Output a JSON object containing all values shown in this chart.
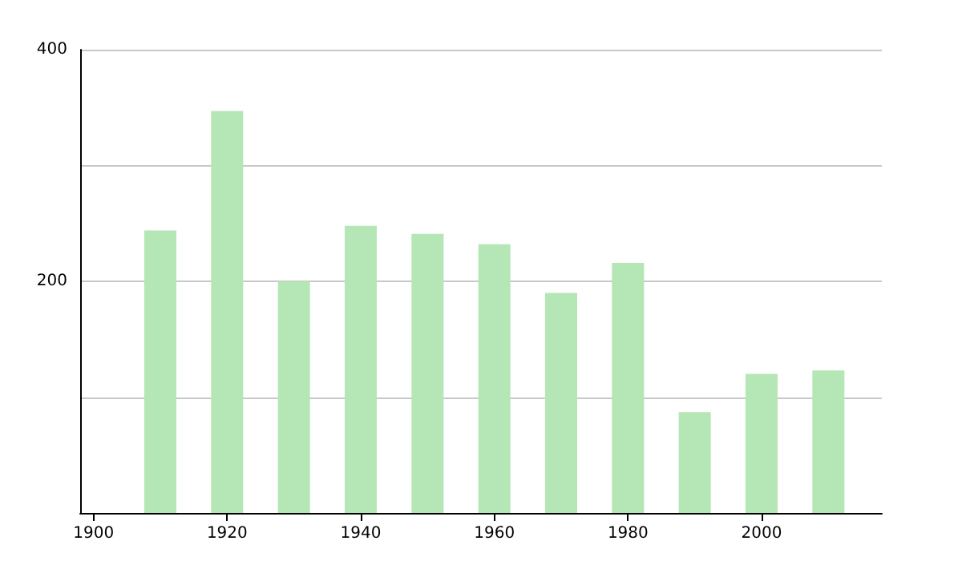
{
  "chart_data": {
    "type": "bar",
    "x": [
      1910,
      1920,
      1930,
      1940,
      1950,
      1960,
      1970,
      1980,
      1990,
      2000,
      2010
    ],
    "values": [
      244,
      347,
      200,
      248,
      241,
      232,
      190,
      216,
      87,
      120,
      123
    ],
    "color": "#b5e6b5",
    "xlim": [
      1898,
      2018
    ],
    "xticks": [
      1900,
      1920,
      1940,
      1960,
      1980,
      2000
    ],
    "ylim": [
      0,
      400
    ],
    "yticks": [
      {
        "value": 100,
        "label": null
      },
      200,
      {
        "value": 300,
        "label": null
      },
      400
    ],
    "grid": "y"
  }
}
